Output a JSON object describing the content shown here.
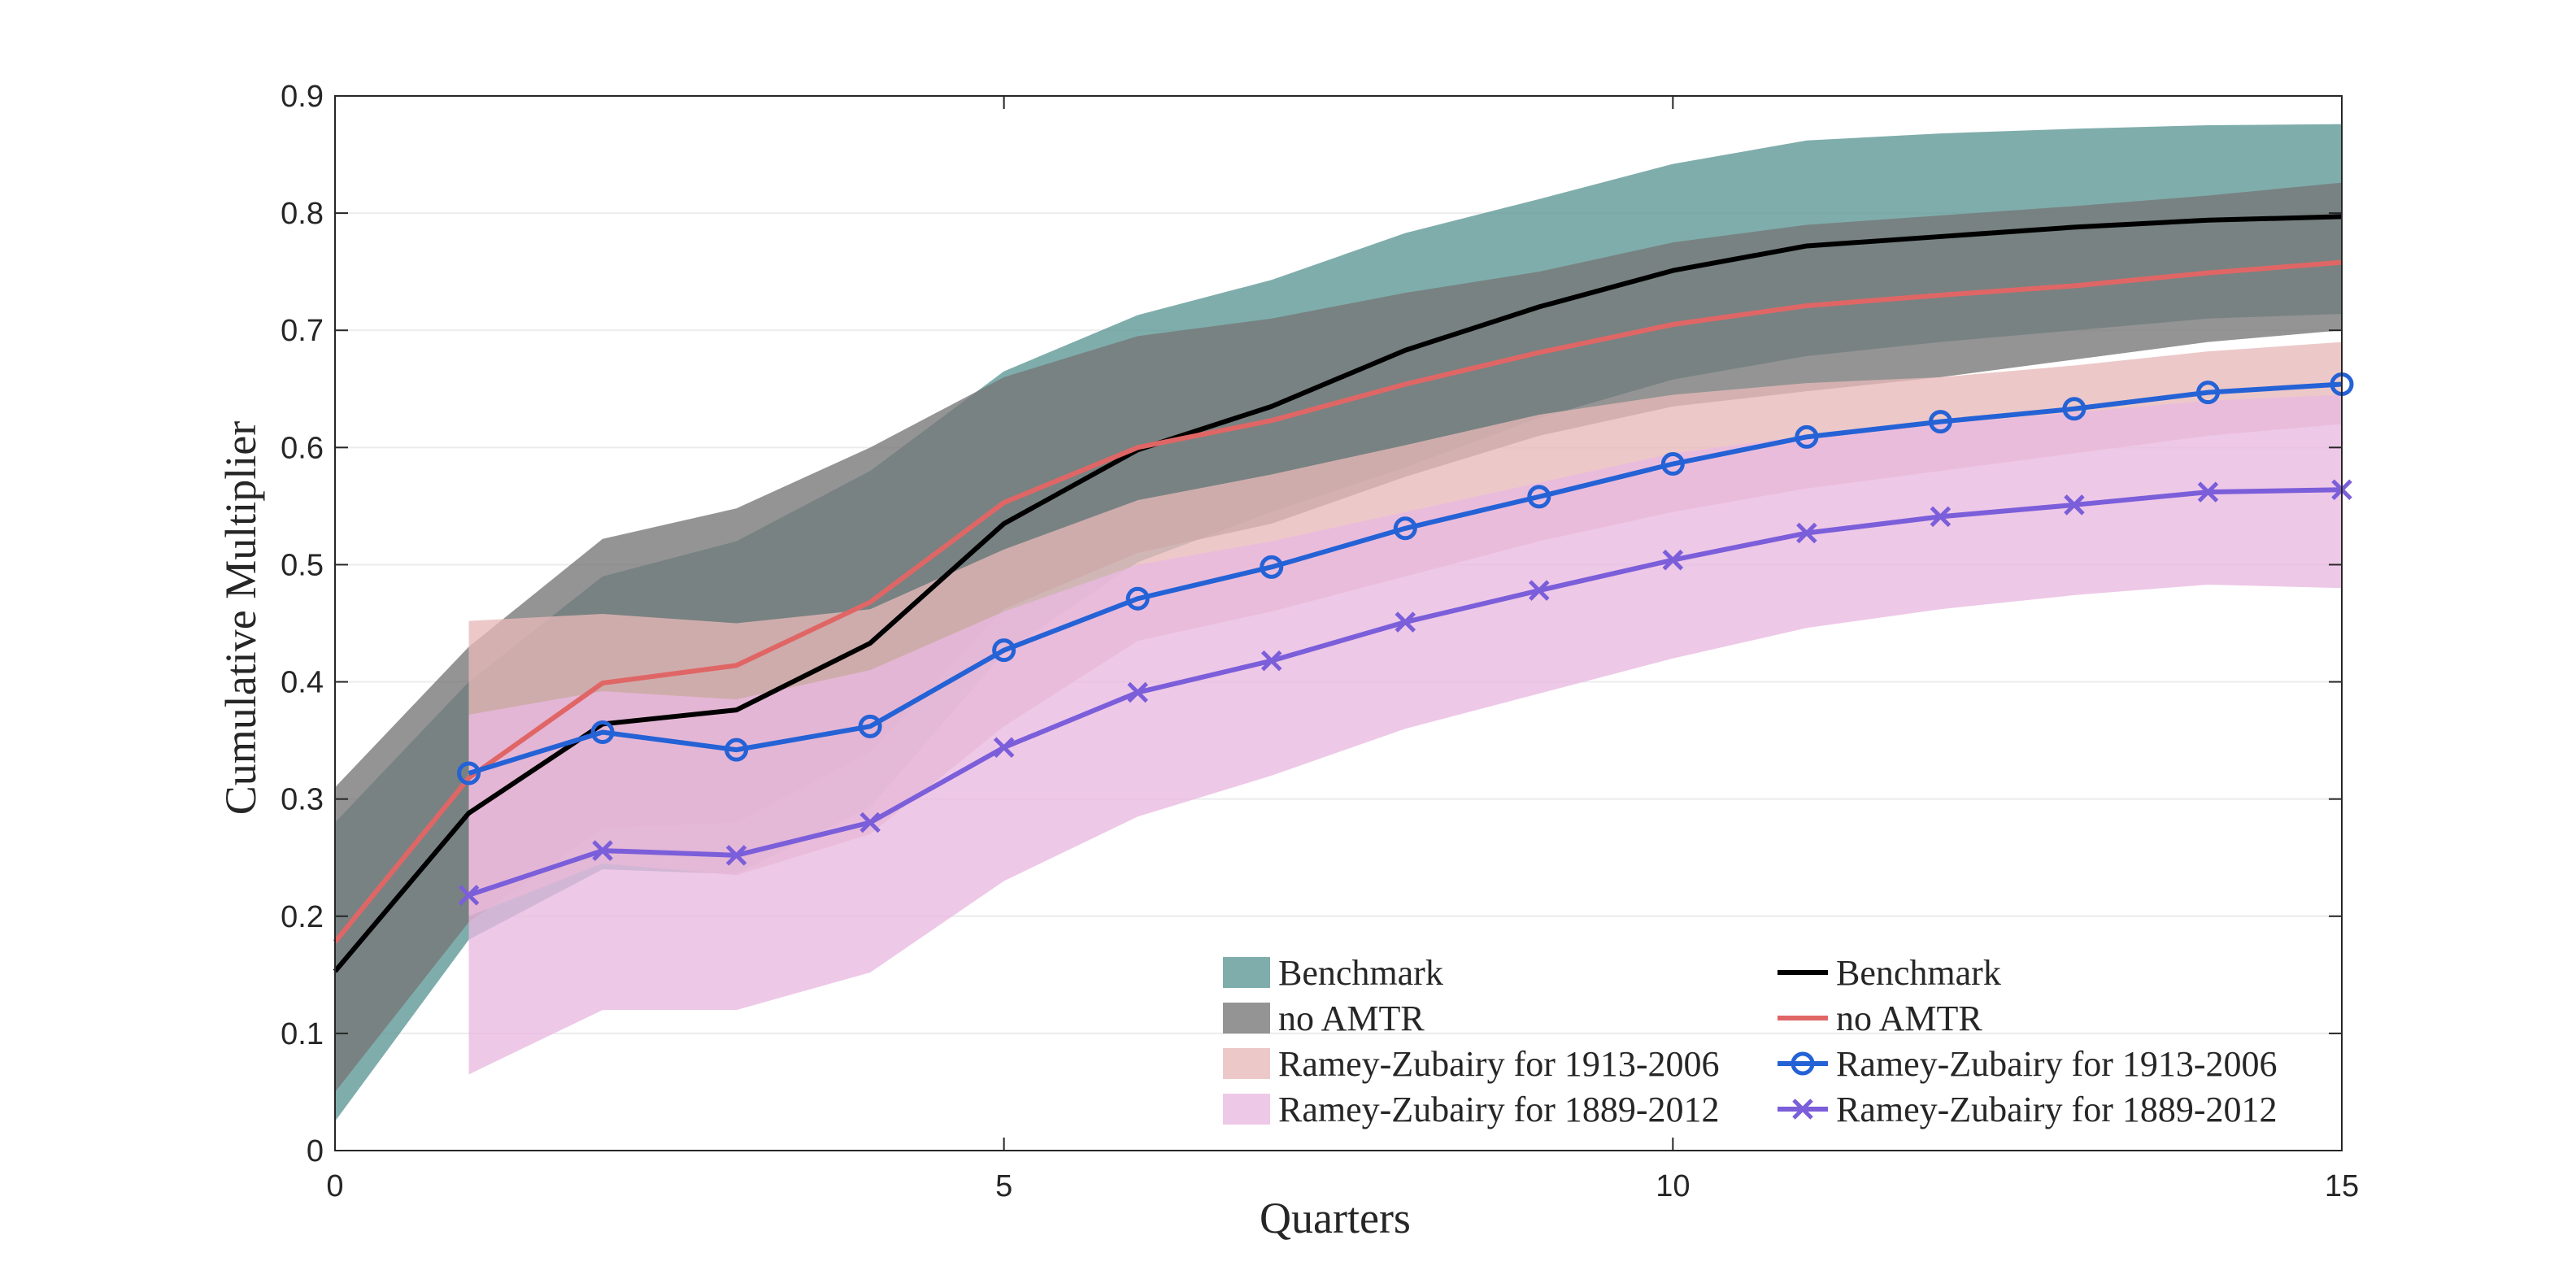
{
  "chart_data": {
    "type": "line",
    "xlabel": "Quarters",
    "ylabel": "Cumulative Multiplier",
    "xlim": [
      0,
      15
    ],
    "ylim": [
      0,
      0.9
    ],
    "xticks": [
      0,
      5,
      10,
      15
    ],
    "xtick_labels": [
      "0",
      "5",
      "10",
      "15"
    ],
    "yticks": [
      0,
      0.1,
      0.2,
      0.3,
      0.4,
      0.5,
      0.6,
      0.7,
      0.8,
      0.9
    ],
    "ytick_labels": [
      "0",
      "0.1",
      "0.2",
      "0.3",
      "0.4",
      "0.5",
      "0.6",
      "0.7",
      "0.8",
      "0.9"
    ],
    "grid": "horizontal",
    "legend_position": "bottom-right",
    "bands": [
      {
        "name": "Benchmark",
        "color": "#5b9694",
        "x": [
          0,
          1,
          2,
          3,
          4,
          5,
          6,
          7,
          8,
          9,
          10,
          11,
          12,
          13,
          14,
          15
        ],
        "upper": [
          0.28,
          0.4,
          0.49,
          0.52,
          0.58,
          0.665,
          0.713,
          0.743,
          0.783,
          0.812,
          0.842,
          0.862,
          0.868,
          0.872,
          0.875,
          0.876
        ],
        "lower": [
          0.025,
          0.18,
          0.24,
          0.236,
          0.293,
          0.425,
          0.502,
          0.545,
          0.583,
          0.625,
          0.658,
          0.678,
          0.69,
          0.7,
          0.71,
          0.714
        ]
      },
      {
        "name": "no AMTR",
        "color": "#767676",
        "x": [
          0,
          1,
          2,
          3,
          4,
          5,
          6,
          7,
          8,
          9,
          10,
          11,
          12,
          13,
          14,
          15
        ],
        "upper": [
          0.31,
          0.43,
          0.522,
          0.548,
          0.6,
          0.66,
          0.695,
          0.71,
          0.732,
          0.75,
          0.775,
          0.79,
          0.798,
          0.806,
          0.815,
          0.826
        ],
        "lower": [
          0.05,
          0.195,
          0.275,
          0.28,
          0.34,
          0.462,
          0.51,
          0.535,
          0.575,
          0.61,
          0.635,
          0.648,
          0.66,
          0.675,
          0.69,
          0.7
        ]
      },
      {
        "name": "Ramey-Zubairy for 1913-2006",
        "color": "#e8b9b9",
        "x": [
          1,
          2,
          3,
          4,
          5,
          6,
          7,
          8,
          9,
          10,
          11,
          12,
          13,
          14,
          15
        ],
        "upper": [
          0.452,
          0.458,
          0.45,
          0.462,
          0.513,
          0.555,
          0.577,
          0.602,
          0.628,
          0.645,
          0.655,
          0.66,
          0.67,
          0.682,
          0.69
        ],
        "lower": [
          0.2,
          0.245,
          0.235,
          0.27,
          0.362,
          0.435,
          0.46,
          0.49,
          0.52,
          0.545,
          0.565,
          0.58,
          0.595,
          0.61,
          0.62
        ]
      },
      {
        "name": "Ramey-Zubairy for 1889-2012",
        "color": "#e9b8e0",
        "x": [
          1,
          2,
          3,
          4,
          5,
          6,
          7,
          8,
          9,
          10,
          11,
          12,
          13,
          14,
          15
        ],
        "upper": [
          0.372,
          0.392,
          0.385,
          0.41,
          0.46,
          0.5,
          0.52,
          0.545,
          0.57,
          0.595,
          0.61,
          0.62,
          0.63,
          0.64,
          0.645
        ],
        "lower": [
          0.065,
          0.12,
          0.12,
          0.152,
          0.23,
          0.285,
          0.32,
          0.36,
          0.39,
          0.42,
          0.446,
          0.462,
          0.474,
          0.483,
          0.48
        ]
      }
    ],
    "series": [
      {
        "name": "Benchmark",
        "color": "#000000",
        "marker": "none",
        "x": [
          0,
          1,
          2,
          3,
          4,
          5,
          6,
          7,
          8,
          9,
          10,
          11,
          12,
          13,
          14,
          15
        ],
        "y": [
          0.153,
          0.288,
          0.364,
          0.376,
          0.433,
          0.535,
          0.598,
          0.635,
          0.683,
          0.72,
          0.751,
          0.772,
          0.78,
          0.788,
          0.794,
          0.797
        ]
      },
      {
        "name": "no AMTR",
        "color": "#e06666",
        "marker": "none",
        "x": [
          0,
          1,
          2,
          3,
          4,
          5,
          6,
          7,
          8,
          9,
          10,
          11,
          12,
          13,
          14,
          15
        ],
        "y": [
          0.178,
          0.318,
          0.399,
          0.414,
          0.468,
          0.553,
          0.6,
          0.623,
          0.654,
          0.681,
          0.705,
          0.721,
          0.73,
          0.738,
          0.749,
          0.758
        ]
      },
      {
        "name": "Ramey-Zubairy for 1913-2006",
        "color": "#2462d6",
        "marker": "circle",
        "x": [
          1,
          2,
          3,
          4,
          5,
          6,
          7,
          8,
          9,
          10,
          11,
          12,
          13,
          14,
          15
        ],
        "y": [
          0.322,
          0.357,
          0.342,
          0.362,
          0.427,
          0.471,
          0.498,
          0.531,
          0.558,
          0.586,
          0.609,
          0.622,
          0.633,
          0.647,
          0.654
        ]
      },
      {
        "name": "Ramey-Zubairy for 1889-2012",
        "color": "#7b5ed9",
        "marker": "x",
        "x": [
          1,
          2,
          3,
          4,
          5,
          6,
          7,
          8,
          9,
          10,
          11,
          12,
          13,
          14,
          15
        ],
        "y": [
          0.218,
          0.256,
          0.252,
          0.28,
          0.344,
          0.391,
          0.418,
          0.451,
          0.478,
          0.504,
          0.527,
          0.541,
          0.551,
          0.562,
          0.564
        ]
      }
    ]
  }
}
